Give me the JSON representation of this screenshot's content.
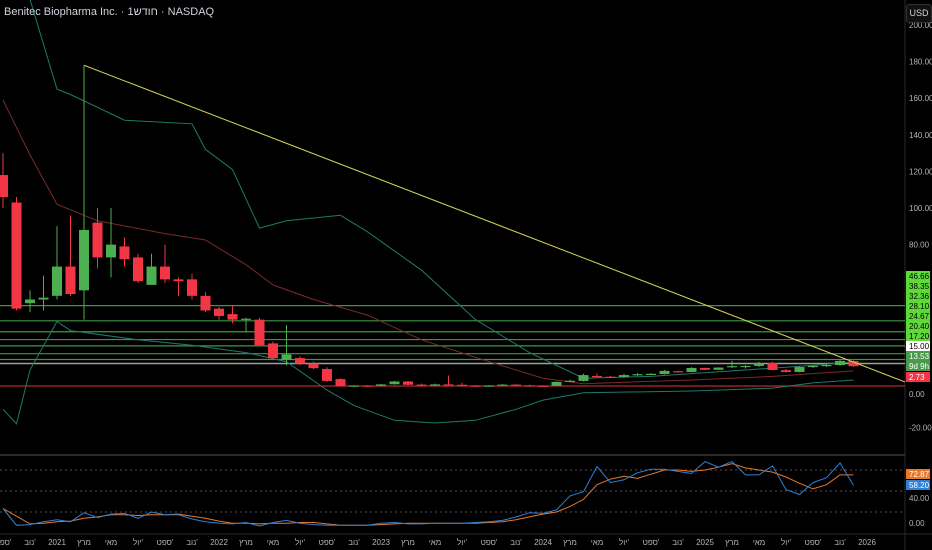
{
  "header": {
    "title": "Benitec Biopharma Inc. · 1חודש · NASDAQ",
    "currency_button": "USD"
  },
  "colors": {
    "up": "#4caf50",
    "down": "#f23645",
    "level": "#5fd93a",
    "trend": "#d6d35a",
    "band": "#1f7a6a",
    "basis": "#7a2a2a",
    "k": "#2f7fd6",
    "d": "#e8782a"
  },
  "chart_data": {
    "type": "candlestick",
    "start_month": "2020-09",
    "interval": "1 month",
    "ohlc": [
      [
        118,
        130,
        100,
        106
      ],
      [
        103,
        106,
        44,
        45
      ],
      [
        48,
        55,
        43,
        50
      ],
      [
        50,
        63,
        44,
        51
      ],
      [
        52,
        90,
        50,
        68
      ],
      [
        68,
        96,
        52,
        53
      ],
      [
        55,
        178,
        39,
        88
      ],
      [
        92,
        100,
        67,
        73
      ],
      [
        73,
        100,
        62,
        80
      ],
      [
        79,
        84,
        68,
        72
      ],
      [
        73,
        75,
        59,
        60
      ],
      [
        58,
        75,
        58,
        68
      ],
      [
        68,
        80,
        59,
        61
      ],
      [
        61,
        62,
        52,
        60
      ],
      [
        61,
        64,
        50,
        52
      ],
      [
        52,
        54,
        43,
        44
      ],
      [
        45,
        46,
        39,
        41
      ],
      [
        42,
        47,
        37,
        39
      ],
      [
        39,
        40,
        32,
        39.5
      ],
      [
        39,
        40,
        25,
        25
      ],
      [
        26,
        27,
        17,
        18
      ],
      [
        17,
        36,
        14,
        20
      ],
      [
        18,
        19,
        14,
        15
      ],
      [
        15,
        16,
        12,
        12.5
      ],
      [
        12,
        13,
        5,
        5.5
      ],
      [
        6.5,
        7,
        2.5,
        2.7
      ],
      [
        2.7,
        3.2,
        2.5,
        3.0
      ],
      [
        3.0,
        3.2,
        2.6,
        2.8
      ],
      [
        2.8,
        3.8,
        2.6,
        3.6
      ],
      [
        3.7,
        5.5,
        3.5,
        5.2
      ],
      [
        5.2,
        5.5,
        3.2,
        3.4
      ],
      [
        3.5,
        4,
        2.7,
        2.9
      ],
      [
        2.9,
        4,
        2.8,
        3.6
      ],
      [
        3.6,
        8.5,
        2.8,
        3.0
      ],
      [
        3.4,
        4.5,
        2.8,
        3.0
      ],
      [
        3.0,
        3.3,
        2.6,
        2.8
      ],
      [
        2.8,
        3.2,
        2.5,
        3.0
      ],
      [
        3.0,
        3.8,
        2.7,
        3.5
      ],
      [
        3.5,
        3.7,
        2.9,
        3.1
      ],
      [
        3.1,
        3.4,
        2.7,
        2.9
      ],
      [
        2.9,
        3.1,
        2.6,
        2.8
      ],
      [
        2.8,
        5.2,
        2.7,
        5.0
      ],
      [
        5.0,
        6.2,
        4.8,
        5.6
      ],
      [
        5.5,
        9.5,
        5.2,
        8.7
      ],
      [
        8.2,
        9.5,
        7.3,
        7.6
      ],
      [
        7.8,
        8.2,
        7.2,
        7.5
      ],
      [
        7.6,
        9.5,
        7.3,
        8.7
      ],
      [
        8.7,
        9.8,
        8.3,
        9.2
      ],
      [
        9.2,
        9.8,
        8.8,
        9.4
      ],
      [
        9.3,
        11.5,
        9.0,
        11.0
      ],
      [
        10.8,
        11.2,
        10.2,
        10.4
      ],
      [
        10.4,
        13,
        10.2,
        12.6
      ],
      [
        12.6,
        12.8,
        11.5,
        11.6
      ],
      [
        11.6,
        13,
        11.4,
        12.8
      ],
      [
        13,
        16.5,
        12.5,
        13.6
      ],
      [
        13.2,
        14,
        12.3,
        13.7
      ],
      [
        13.7,
        16,
        13.2,
        15.3
      ],
      [
        15.3,
        16,
        11.4,
        11.5
      ],
      [
        11.4,
        12,
        10.2,
        10.4
      ],
      [
        10.4,
        13.5,
        10.2,
        13.1
      ],
      [
        13.1,
        14,
        12.6,
        13.7
      ],
      [
        13.7,
        15,
        13.2,
        14.2
      ],
      [
        14.2,
        16.8,
        13.8,
        16.4
      ],
      [
        16.4,
        16.8,
        13.2,
        13.53
      ]
    ],
    "price_axis": {
      "ticks": [
        "200.00",
        "180.00",
        "160.00",
        "140.00",
        "120.00",
        "100.00",
        "80.00",
        "0.00",
        "-20.00"
      ],
      "range": [
        -35,
        210
      ]
    },
    "levels": [
      {
        "price": 46.66,
        "label": "46.66"
      },
      {
        "price": 38.35,
        "label": "38.35"
      },
      {
        "price": 32.36,
        "label": "32.36"
      },
      {
        "price": 28.1,
        "label": "28.10"
      },
      {
        "price": 24.67,
        "label": "24.67"
      },
      {
        "price": 20.4,
        "label": "20.40"
      },
      {
        "price": 17.2,
        "label": "17.20"
      }
    ],
    "white_level": {
      "price": 15.0,
      "label": "15.00"
    },
    "current": {
      "price": 13.53,
      "label": "13.53",
      "countdown": "9d 9h"
    },
    "red_level": {
      "price": 2.73,
      "label": "2.73"
    },
    "trendline": [
      [
        "2021-03",
        178
      ],
      [
        "2025-12",
        15.8
      ]
    ],
    "bands": {
      "upper": [
        [
          "2020-11",
          214
        ],
        [
          "2021-01",
          165
        ],
        [
          "2021-02",
          162
        ],
        [
          "2021-06",
          148
        ],
        [
          "2021-11",
          146
        ],
        [
          "2021-12",
          132
        ],
        [
          "2022-02",
          121
        ],
        [
          "2022-04",
          89
        ],
        [
          "2022-06",
          93
        ],
        [
          "2022-10",
          96
        ],
        [
          "2022-12",
          87
        ],
        [
          "2023-04",
          66
        ],
        [
          "2023-08",
          39
        ],
        [
          "2023-12",
          21
        ],
        [
          "2024-04",
          7
        ],
        [
          "2024-09",
          8
        ],
        [
          "2025-03",
          11
        ],
        [
          "2025-09",
          14
        ],
        [
          "2025-12",
          16
        ]
      ],
      "basis": [
        [
          "2020-09",
          159
        ],
        [
          "2020-11",
          129
        ],
        [
          "2021-01",
          102
        ],
        [
          "2021-04",
          93
        ],
        [
          "2021-09",
          86
        ],
        [
          "2021-12",
          82.5
        ],
        [
          "2022-03",
          69
        ],
        [
          "2022-05",
          58
        ],
        [
          "2022-08",
          50
        ],
        [
          "2022-12",
          41.5
        ],
        [
          "2023-04",
          28
        ],
        [
          "2023-09",
          16
        ],
        [
          "2024-01",
          7
        ],
        [
          "2024-04",
          4
        ],
        [
          "2024-12",
          6
        ],
        [
          "2025-06",
          8
        ],
        [
          "2025-12",
          11
        ]
      ],
      "lower": [
        [
          "2020-09",
          -10
        ],
        [
          "2020-10",
          -18
        ],
        [
          "2020-11",
          11.5
        ],
        [
          "2021-01",
          38
        ],
        [
          "2021-02",
          33
        ],
        [
          "2021-07",
          28
        ],
        [
          "2021-11",
          25
        ],
        [
          "2022-03",
          21
        ],
        [
          "2022-06",
          16
        ],
        [
          "2022-09",
          0.5
        ],
        [
          "2022-11",
          -8
        ],
        [
          "2023-02",
          -16
        ],
        [
          "2023-05",
          -17.5
        ],
        [
          "2023-08",
          -16
        ],
        [
          "2023-11",
          -10
        ],
        [
          "2024-01",
          -5
        ],
        [
          "2024-04",
          -1
        ],
        [
          "2024-12",
          0
        ],
        [
          "2025-06",
          1.6
        ],
        [
          "2025-09",
          4.4
        ],
        [
          "2025-12",
          6
        ]
      ]
    },
    "oscillator": {
      "axis_ticks": [
        "40.00",
        "0.00"
      ],
      "range": [
        0,
        100
      ],
      "guides": [
        80,
        50,
        20
      ],
      "k": [
        25,
        1,
        2,
        6,
        9,
        6,
        19,
        12,
        17,
        18,
        11,
        20,
        16,
        16,
        10,
        6,
        4,
        3,
        5,
        0,
        5,
        8,
        4,
        2,
        1,
        1,
        1,
        1,
        4,
        5,
        3,
        3,
        4,
        4,
        4,
        5,
        6,
        8,
        13,
        19,
        18,
        23,
        43,
        49,
        85,
        62,
        66,
        76,
        81,
        81,
        78,
        75,
        92,
        84,
        92,
        73,
        73,
        86,
        52,
        45,
        62,
        69,
        90,
        58
      ],
      "d": [
        25,
        14,
        3,
        4,
        6,
        7,
        11,
        13,
        16,
        16,
        15,
        16,
        16,
        17,
        14,
        11,
        7,
        4,
        4,
        3,
        4,
        4,
        5,
        5,
        3,
        1,
        1,
        1,
        2,
        3,
        4,
        4,
        4,
        4,
        4,
        4,
        5,
        6,
        9,
        13,
        17,
        20,
        28,
        38,
        59,
        67,
        71,
        68,
        74,
        80,
        80,
        78,
        80,
        84,
        89,
        83,
        80,
        77,
        70,
        61,
        53,
        59,
        73,
        73
      ],
      "d_label": "72.87",
      "k_label": "58.20"
    },
    "time_axis": [
      {
        "date": "2020-09",
        "label": "ספט'"
      },
      {
        "date": "2020-11",
        "label": "נוב'"
      },
      {
        "date": "2021-01",
        "label": "2021"
      },
      {
        "date": "2021-03",
        "label": "מרץ"
      },
      {
        "date": "2021-05",
        "label": "מאי"
      },
      {
        "date": "2021-07",
        "label": "יול'"
      },
      {
        "date": "2021-09",
        "label": "ספט'"
      },
      {
        "date": "2021-11",
        "label": "נוב'"
      },
      {
        "date": "2022-01",
        "label": "2022"
      },
      {
        "date": "2022-03",
        "label": "מרץ"
      },
      {
        "date": "2022-05",
        "label": "מאי"
      },
      {
        "date": "2022-07",
        "label": "יול'"
      },
      {
        "date": "2022-09",
        "label": "ספט'"
      },
      {
        "date": "2022-11",
        "label": "נוב'"
      },
      {
        "date": "2023-01",
        "label": "2023"
      },
      {
        "date": "2023-03",
        "label": "מרץ"
      },
      {
        "date": "2023-05",
        "label": "מאי"
      },
      {
        "date": "2023-07",
        "label": "יול'"
      },
      {
        "date": "2023-09",
        "label": "ספט'"
      },
      {
        "date": "2023-11",
        "label": "נוב'"
      },
      {
        "date": "2024-01",
        "label": "2024"
      },
      {
        "date": "2024-03",
        "label": "מרץ"
      },
      {
        "date": "2024-05",
        "label": "מאי"
      },
      {
        "date": "2024-07",
        "label": "יול'"
      },
      {
        "date": "2024-09",
        "label": "ספט'"
      },
      {
        "date": "2024-11",
        "label": "נוב'"
      },
      {
        "date": "2025-01",
        "label": "2025"
      },
      {
        "date": "2025-03",
        "label": "מרץ"
      },
      {
        "date": "2025-05",
        "label": "מאי"
      },
      {
        "date": "2025-07",
        "label": "יול'"
      },
      {
        "date": "2025-09",
        "label": "ספט'"
      },
      {
        "date": "2025-11",
        "label": "נוב'"
      },
      {
        "date": "2026-01",
        "label": "2026"
      }
    ]
  }
}
